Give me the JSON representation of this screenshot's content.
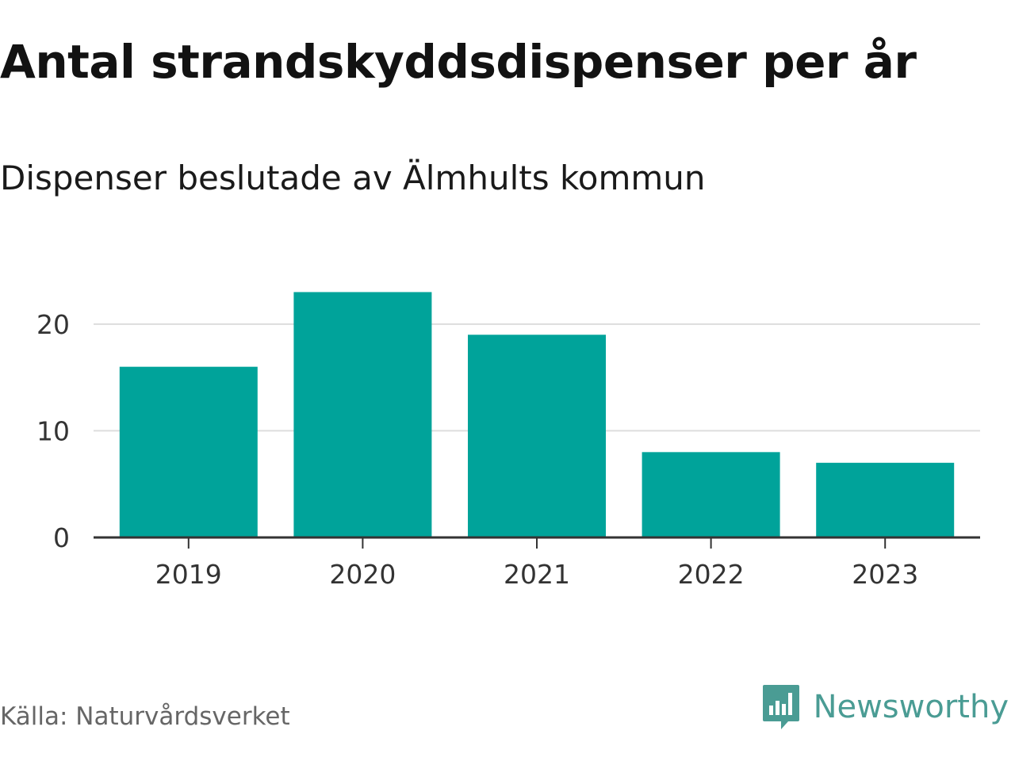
{
  "title": "Antal strandskyddsdispenser per år",
  "subtitle": "Dispenser beslutade av Älmhults kommun",
  "source": "Källa: Naturvårdsverket",
  "brand": {
    "name": "Newsworthy",
    "icon": "newsworthy-logo-icon",
    "color": "#4a9c94"
  },
  "chart_data": {
    "type": "bar",
    "categories": [
      "2019",
      "2020",
      "2021",
      "2022",
      "2023"
    ],
    "values": [
      16,
      23,
      19,
      8,
      7
    ],
    "yticks": [
      0,
      10,
      20
    ],
    "ylim": [
      0,
      24
    ],
    "xlabel": "",
    "ylabel": "",
    "grid": true,
    "legend": "none",
    "bar_color": "#00a39a"
  }
}
